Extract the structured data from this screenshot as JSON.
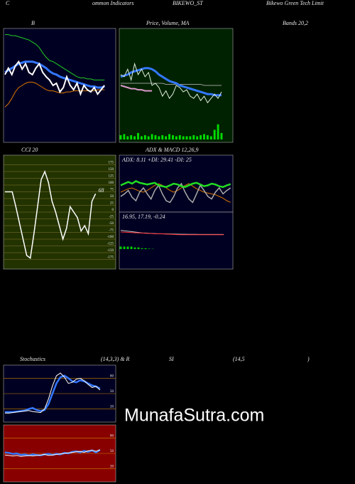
{
  "labels": [
    "C",
    "ommon Indicators",
    "BIKEWO_ST",
    "Bikewo Green Tech Limit",
    "Bands 20,2",
    "Stochastics",
    "(14,3,3) & R",
    "SI",
    "(14,5",
    ")"
  ],
  "watermark": "MunafaSutra.com",
  "chart_data": [
    {
      "type": "line",
      "title": "B",
      "background": "#000022",
      "ylim": [
        0,
        100
      ],
      "series": [
        {
          "color": "#22cc22",
          "width": 1,
          "values": [
            97,
            97,
            96,
            96,
            95,
            94,
            93,
            92,
            90,
            88,
            85,
            80,
            76,
            73,
            72,
            70,
            68,
            66,
            64,
            62,
            60,
            58,
            57,
            57,
            56,
            56,
            55,
            55,
            55,
            55
          ]
        },
        {
          "color": "#dd7700",
          "width": 1,
          "values": [
            30,
            33,
            38,
            44,
            48,
            50,
            52,
            53,
            53,
            52,
            50,
            48,
            46,
            45,
            45,
            44,
            43,
            43,
            44,
            44,
            45,
            45,
            45,
            45,
            45,
            45,
            45,
            46,
            46,
            46
          ]
        },
        {
          "color": "#3377ff",
          "width": 3,
          "values": [
            62,
            64,
            66,
            68,
            70,
            71,
            72,
            72,
            72,
            71,
            70,
            68,
            66,
            63,
            61,
            60,
            58,
            57,
            56,
            55,
            54,
            53,
            52,
            51,
            50,
            49,
            49,
            48,
            48,
            49
          ]
        },
        {
          "color": "#ffffff",
          "width": 2,
          "values": [
            60,
            66,
            60,
            68,
            72,
            65,
            70,
            62,
            60,
            66,
            70,
            62,
            58,
            55,
            50,
            52,
            44,
            48,
            58,
            50,
            46,
            52,
            42,
            50,
            46,
            44,
            48,
            42,
            46,
            50
          ]
        }
      ]
    },
    {
      "type": "line",
      "title": "Price, Volume, MA",
      "background": "#002200",
      "ylim": [
        0,
        100
      ],
      "y2lim": [
        0,
        100
      ],
      "series": [
        {
          "color": "#999999",
          "width": 1,
          "values": [
            52,
            52,
            52,
            52,
            52,
            52,
            52,
            52,
            52,
            52,
            52,
            52,
            52,
            51,
            51,
            51,
            51,
            51,
            51,
            51,
            51,
            51,
            51,
            51,
            50,
            50,
            50,
            50,
            50,
            50
          ]
        },
        {
          "color": "#dd99cc",
          "width": 2,
          "values": [
            50,
            49,
            48,
            47,
            47,
            46,
            46,
            45,
            45,
            45,
            null,
            null,
            null,
            null,
            null,
            null,
            null,
            null,
            null,
            null,
            null,
            null,
            null,
            null,
            null,
            null,
            null,
            null,
            null,
            null
          ]
        },
        {
          "color": "#3377ff",
          "width": 3,
          "values": [
            58,
            59,
            60,
            62,
            63,
            64,
            65,
            66,
            66,
            65,
            63,
            60,
            58,
            56,
            54,
            53,
            52,
            50,
            49,
            48,
            47,
            46,
            45,
            44,
            43,
            42,
            42,
            41,
            41,
            41
          ]
        },
        {
          "color": "#ddeedd",
          "width": 1,
          "values": [
            60,
            58,
            65,
            55,
            70,
            60,
            65,
            58,
            62,
            50,
            52,
            48,
            40,
            45,
            38,
            42,
            50,
            48,
            44,
            46,
            40,
            38,
            42,
            36,
            40,
            34,
            38,
            42,
            38,
            44
          ]
        },
        {
          "color": "#00dd00",
          "type": "bar",
          "axis": "y2",
          "values": [
            4,
            5,
            3,
            4,
            3,
            6,
            3,
            4,
            3,
            5,
            4,
            3,
            4,
            3,
            5,
            4,
            3,
            4,
            3,
            3,
            3,
            4,
            3,
            4,
            5,
            4,
            3,
            9,
            14,
            6
          ]
        }
      ]
    },
    {
      "type": "line",
      "title": "CCI 20",
      "background": "#223300",
      "ylim": [
        -200,
        200
      ],
      "grid_color": "#887733",
      "yticks": [
        -175,
        -150,
        -125,
        -100,
        -75,
        -50,
        -25,
        0,
        25,
        50,
        75,
        100,
        125,
        150,
        175
      ],
      "series": [
        {
          "color": "#ffffff",
          "width": 1.5,
          "values": [
            75,
            75,
            75,
            20,
            -40,
            -100,
            -160,
            -170,
            -80,
            20,
            120,
            150,
            110,
            40,
            0,
            -50,
            -100,
            -60,
            20,
            0,
            -20,
            -70,
            -50,
            -80,
            40,
            68
          ]
        }
      ]
    },
    {
      "type": "line",
      "title": "ADX  & MACD 12,26,9",
      "subtitle": "ADX: 8.11 +DI: 29.41 -DI: 25",
      "background": "#000022",
      "ylim": [
        0,
        60
      ],
      "series": [
        {
          "color": "#dd7700",
          "width": 1,
          "values": [
            20,
            22,
            24,
            25,
            23,
            21,
            20,
            22,
            25,
            28,
            30,
            28,
            25,
            22,
            20,
            22,
            25,
            28,
            30,
            27,
            24,
            22,
            20,
            19,
            18,
            17,
            15,
            13,
            10,
            8.11
          ]
        },
        {
          "color": "#aaaaaa",
          "width": 1.5,
          "values": [
            15,
            18,
            22,
            14,
            10,
            20,
            25,
            18,
            12,
            22,
            28,
            18,
            10,
            8,
            15,
            25,
            30,
            20,
            12,
            8,
            18,
            28,
            22,
            15,
            12,
            20,
            25,
            18,
            22,
            25
          ]
        },
        {
          "color": "#22dd22",
          "width": 2.5,
          "values": [
            28,
            30,
            32,
            30,
            33,
            31,
            30,
            29,
            30,
            31,
            28,
            27,
            26,
            28,
            30,
            29,
            27,
            26,
            28,
            30,
            31,
            29,
            27,
            28,
            30,
            29,
            27,
            26,
            28,
            29.41
          ]
        }
      ]
    },
    {
      "type": "line",
      "title": "16.95, 17.19, -0.24",
      "background": "#000022",
      "ylim": [
        -20,
        40
      ],
      "series": [
        {
          "color": "#00cc00",
          "type": "bar",
          "values": [
            3,
            3,
            3,
            3,
            2,
            2,
            1,
            1,
            0.5,
            0.3,
            0,
            0,
            0,
            0,
            0,
            0,
            0,
            0,
            0,
            0,
            0,
            0,
            0,
            0,
            0,
            0,
            0,
            0,
            0,
            0
          ]
        },
        {
          "color": "#cccccc",
          "width": 1,
          "values": [
            22,
            21.5,
            21,
            20.5,
            20,
            19.5,
            19,
            18.8,
            18.5,
            18.3,
            18.1,
            18,
            17.9,
            17.8,
            17.7,
            17.6,
            17.5,
            17.4,
            17.4,
            17.3,
            17.3,
            17.3,
            17.2,
            17.2,
            17.2,
            17.2,
            17.2,
            17.2,
            17.2,
            17.19
          ]
        },
        {
          "color": "#ff3333",
          "width": 1,
          "values": [
            20,
            19.8,
            19.6,
            19.4,
            19.2,
            19,
            18.8,
            18.6,
            18.4,
            18.2,
            18,
            17.9,
            17.8,
            17.6,
            17.4,
            17.2,
            17,
            16.9,
            16.8,
            16.8,
            16.8,
            16.8,
            16.8,
            16.9,
            16.9,
            16.9,
            16.9,
            16.9,
            16.9,
            16.95
          ]
        }
      ]
    },
    {
      "type": "line",
      "background": "#000022",
      "ylim": [
        0,
        100
      ],
      "grid_color": "#cc8800",
      "yticks": [
        20,
        50,
        80
      ],
      "series": [
        {
          "color": "#3377ff",
          "width": 2.5,
          "values": [
            14,
            14,
            14,
            15,
            16,
            17,
            20,
            22,
            18,
            16,
            18,
            30,
            50,
            70,
            82,
            85,
            80,
            74,
            72,
            76,
            74,
            70,
            66,
            64,
            60
          ]
        },
        {
          "color": "#ffffff",
          "width": 1,
          "values": [
            12,
            12,
            13,
            14,
            15,
            16,
            17,
            15,
            14,
            13,
            20,
            40,
            65,
            85,
            90,
            82,
            70,
            72,
            78,
            80,
            75,
            68,
            62,
            64,
            57
          ]
        }
      ]
    },
    {
      "type": "line",
      "background": "#880000",
      "ylim": [
        0,
        100
      ],
      "grid_color": "#cc8800",
      "yticks": [
        20,
        50,
        80
      ],
      "series": [
        {
          "color": "#3377ff",
          "width": 2.5,
          "values": [
            52,
            51,
            49,
            50,
            47,
            48,
            46,
            48,
            47,
            46,
            48,
            49,
            47,
            49,
            48,
            51,
            50,
            53,
            54,
            52,
            55,
            53,
            56,
            52,
            57
          ]
        },
        {
          "color": "#ffffff",
          "width": 1,
          "values": [
            47,
            46,
            45,
            46,
            44,
            45,
            46,
            45,
            46,
            47,
            48,
            46,
            47,
            48,
            49,
            50,
            51,
            52,
            53,
            54,
            52,
            55,
            56,
            54,
            57
          ]
        }
      ]
    }
  ]
}
